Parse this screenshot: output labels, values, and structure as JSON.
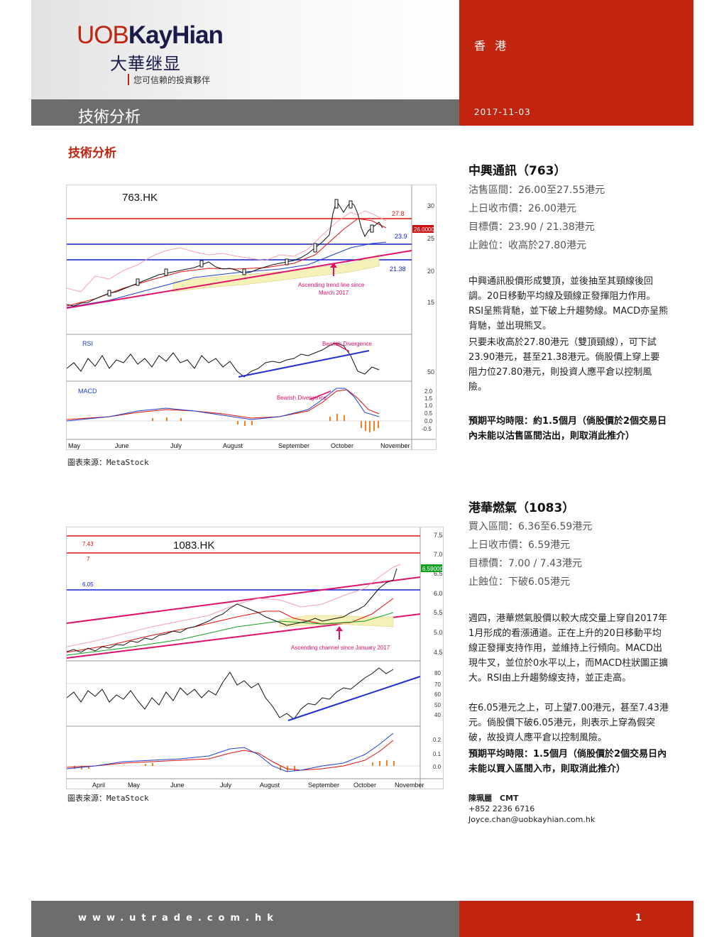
{
  "header": {
    "logo_latin_a": "UOB",
    "logo_latin_b": "KayHian",
    "logo_chinese": "大華继显",
    "tagline": "您可信赖的投資夥伴",
    "region": "香 港",
    "report_type": "技術分析",
    "date": "2017-11-03"
  },
  "section_title": "技術分析",
  "stocks": [
    {
      "title": "中興通訊（763）",
      "kv": [
        "沽售區間：26.00至27.55港元",
        "上日收市價：26.00港元",
        "目標價：23.90 / 21.38港元",
        "止蝕位：收高於27.80港元"
      ],
      "paragraphs": [
        "中興通訊股價形成雙頂，並後抽至其頸線後回調。20日移動平均線及頸線正發揮阻力作用。RSI呈熊背馳，並下破上升趨勢線。MACD亦呈熊背馳，並出現熊叉。",
        "只要未收高於27.80港元（雙頂頸線），可下試23.90港元，甚至21.38港元。倘股價上穿上要阻力位27.80港元，則投資人應平倉以控制風險。"
      ],
      "holding": "預期平均時限：約1.5個月（倘股價於2個交易日內未能以沽售區間沽出，則取消此推介）"
    },
    {
      "title": "港華燃氣（1083）",
      "kv": [
        "買入區間：6.36至6.59港元",
        "上日收市價：6.59港元",
        "目標價：7.00 / 7.43港元",
        "止蝕位：下破6.05港元"
      ],
      "paragraphs": [
        "週四，港華燃氣股價以較大成交量上穿自2017年1月形成的看漲通道。正在上升的20日移動平均線正發揮支持作用，並維持上行傾向。MACD出現牛叉，並位於0水平以上，而MACD柱狀圖正擴大。RSI由上升趨勢線支持，並正走高。",
        "在6.05港元之上，可上望7.00港元，甚至7.43港元。倘股價下破6.05港元，則表示上穿為假突破，故投資人應平倉以控制風險。"
      ],
      "holding": "預期平均時限：1.5個月（倘股價於2個交易日內未能以買入區間入市，則取消此推介）"
    }
  ],
  "charts": [
    {
      "ticker": "763.HK",
      "source": "圖表來源：MetaStock",
      "price_levels": [
        "27.8",
        "23.9",
        "21.38"
      ],
      "last_price_tag": "26.0000",
      "y_ticks": [
        "30",
        "25",
        "20",
        "15"
      ],
      "rsi_label": "RSI",
      "rsi_tick": "50",
      "macd_label": "MACD",
      "macd_ticks": [
        "2.0",
        "1.5",
        "1.0",
        "0.5",
        "0.0",
        "-0.5"
      ],
      "annotations": [
        "Bearish Divergence",
        "Bearish Divergence",
        "Ascending trend line since",
        "March 2017"
      ],
      "months": [
        "May",
        "June",
        "July",
        "August",
        "September",
        "October",
        "November"
      ]
    },
    {
      "ticker": "1083.HK",
      "source": "圖表來源：MetaStock",
      "price_levels": [
        "7.43",
        "7",
        "6.05"
      ],
      "last_price_tag": "6.59000",
      "y_ticks": [
        "7.5",
        "7.0",
        "6.5",
        "6.0",
        "5.5",
        "5.0",
        "4.5"
      ],
      "rsi_ticks": [
        "80",
        "70",
        "60",
        "50",
        "40"
      ],
      "macd_ticks": [
        "0.2",
        "0.1",
        "0.0"
      ],
      "annotations": [
        "Ascending channel since January 2017"
      ],
      "months": [
        "April",
        "May",
        "June",
        "July",
        "August",
        "September",
        "October",
        "November"
      ]
    }
  ],
  "contact": {
    "name": "陳珮麗　CMT",
    "phone": "+852 2236 6716",
    "email": "Joyce.chan@uobkayhian.com.hk"
  },
  "footer": {
    "url": "www.utrade.com.hk",
    "page": "1"
  },
  "colors": {
    "brand_red": "#c1250f",
    "band_gray": "#6d6d6d",
    "navy": "#1b1b4b"
  }
}
